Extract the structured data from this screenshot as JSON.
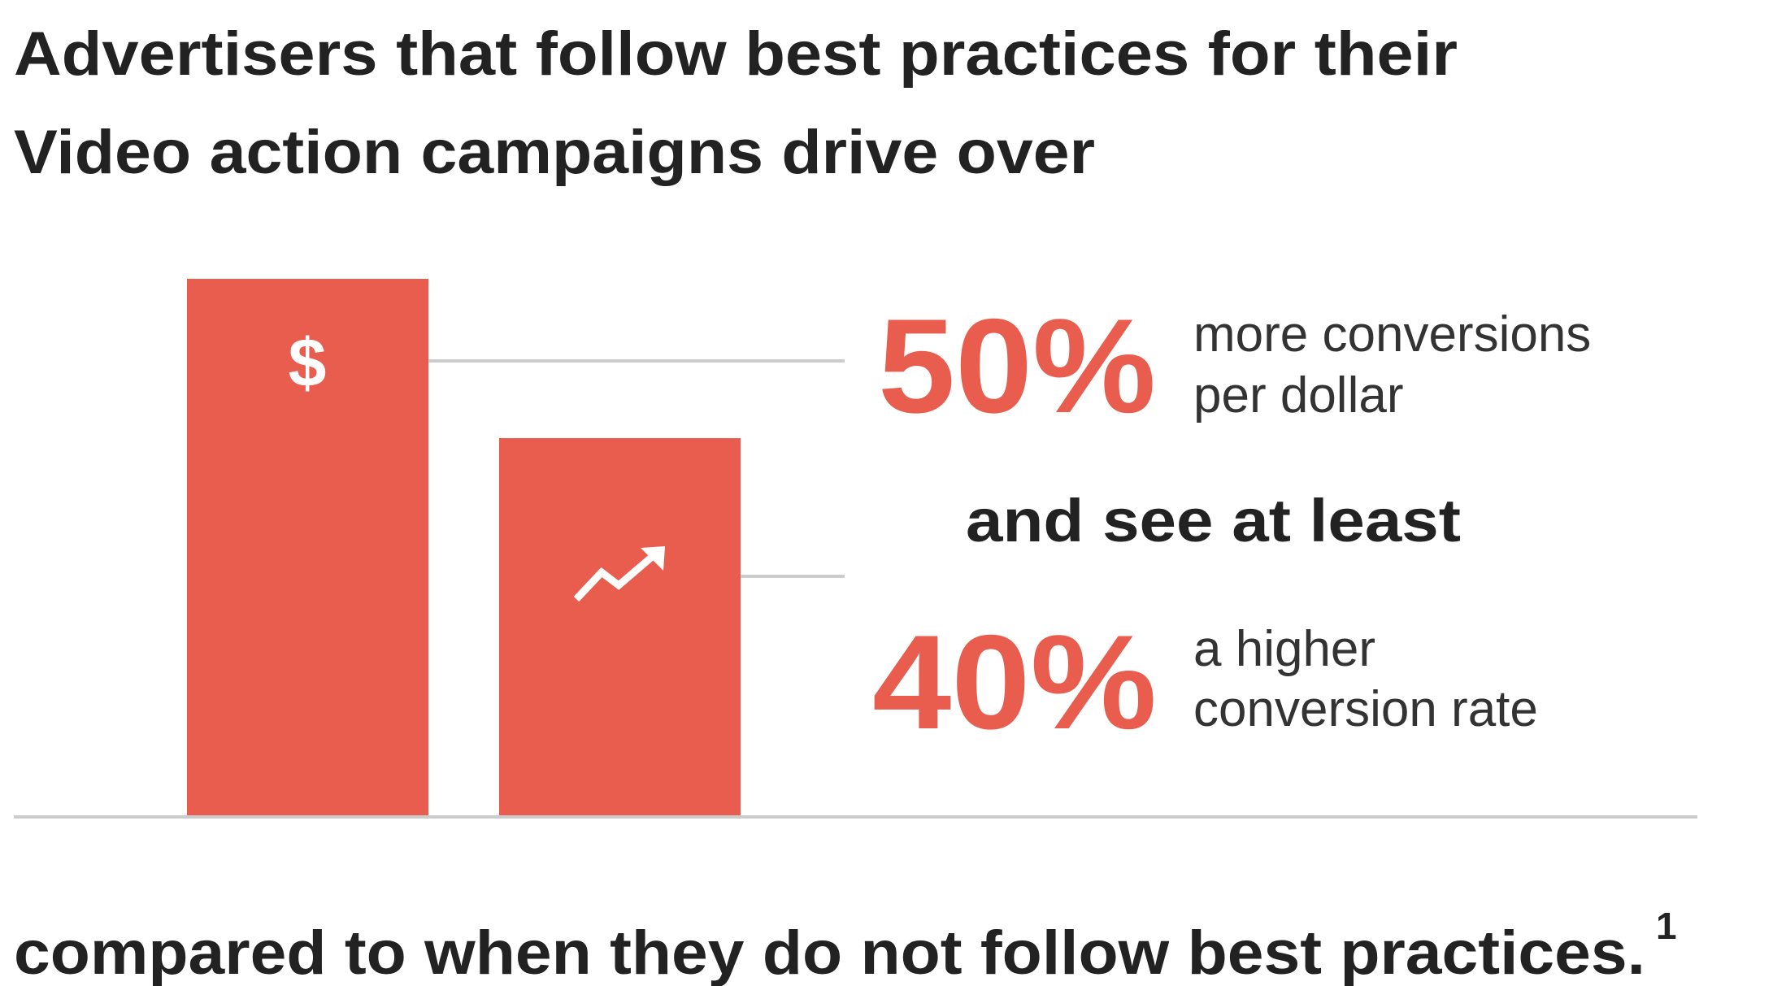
{
  "title_lines": [
    "Advertisers that follow best practices for their",
    "Video action campaigns drive over"
  ],
  "dollar_icon": "$",
  "stats": [
    {
      "value": "50%",
      "lines": [
        "more conversions",
        "per dollar"
      ]
    },
    {
      "value": "40%",
      "lines": [
        "a higher",
        "conversion rate"
      ]
    }
  ],
  "connector": "and see at least",
  "footer": {
    "text": "compared to when they do not follow best practices.",
    "footnote": "1"
  }
}
